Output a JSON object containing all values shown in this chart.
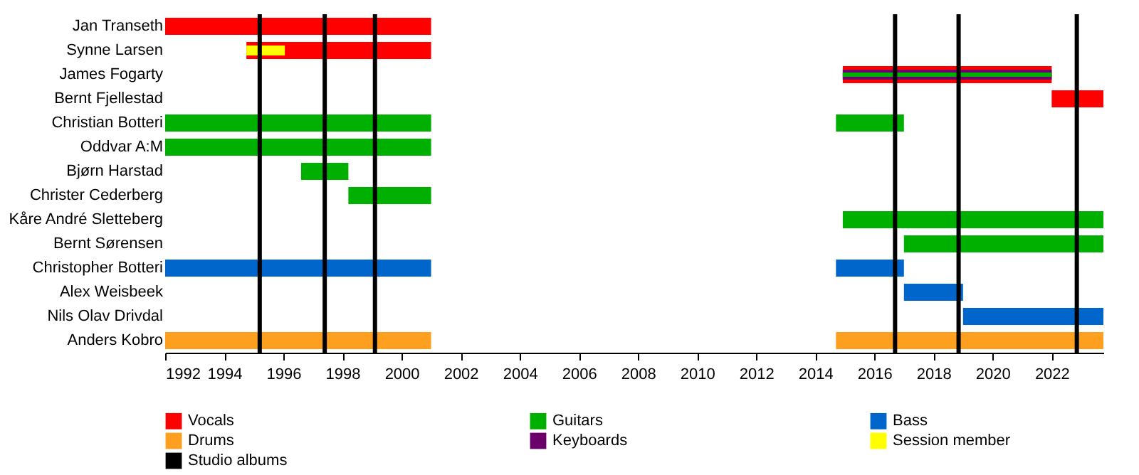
{
  "chart_data": {
    "type": "bar",
    "orientation": "horizontal",
    "legend": "bottom",
    "categories": [
      "Jan Transeth",
      "Synne Larsen",
      "James Fogarty",
      "Bernt Fjellestad",
      "Christian Botteri",
      "Oddvar A:M",
      "Bjørn Harstad",
      "Christer Cederberg",
      "Kåre André Sletteberg",
      "Bernt Sørensen",
      "Christopher Botteri",
      "Alex Weisbeek",
      "Nils Olav Drivdal",
      "Anders Kobro"
    ],
    "series": [
      {
        "name": "Vocals",
        "color": "#ff0000",
        "base": [
          1992,
          1994.75,
          2014.93,
          2022,
          null,
          null,
          null,
          null,
          null,
          null,
          null,
          null,
          null,
          null
        ],
        "values": [
          9,
          6.25,
          7.07,
          1.75,
          null,
          null,
          null,
          null,
          null,
          null,
          null,
          null,
          null,
          null
        ]
      },
      {
        "name": "Guitars",
        "color": "#00b000",
        "base": [
          null,
          null,
          null,
          null,
          1992,
          1992,
          1996.6,
          1998.2,
          2014.93,
          2017,
          null,
          null,
          null,
          null
        ],
        "values": [
          null,
          null,
          null,
          null,
          9,
          9,
          1.6,
          2.8,
          8.82,
          6.75,
          null,
          null,
          null,
          null
        ]
      },
      {
        "name": "Bass",
        "color": "#0066cc",
        "base": [
          null,
          null,
          null,
          null,
          null,
          null,
          null,
          null,
          null,
          null,
          1992,
          2017,
          2019,
          null
        ],
        "values": [
          null,
          null,
          null,
          null,
          null,
          null,
          null,
          null,
          null,
          null,
          9,
          2,
          4.75,
          null
        ]
      },
      {
        "name": "Drums",
        "color": "#ff9f20",
        "base": [
          null,
          null,
          null,
          null,
          null,
          null,
          null,
          null,
          null,
          null,
          null,
          null,
          null,
          1992
        ],
        "values": [
          null,
          null,
          null,
          null,
          null,
          null,
          null,
          null,
          null,
          null,
          null,
          null,
          null,
          9
        ]
      },
      {
        "name": "Keyboards",
        "color": "#6b006b",
        "base": [
          null,
          null,
          2014.93,
          null,
          null,
          null,
          null,
          null,
          null,
          null,
          null,
          null,
          null,
          null
        ],
        "values": [
          null,
          null,
          7.07,
          null,
          null,
          null,
          null,
          null,
          null,
          null,
          null,
          null,
          null,
          null
        ]
      },
      {
        "name": "Session member",
        "color": "#ffff00",
        "base": [
          null,
          1994.75,
          null,
          null,
          null,
          null,
          null,
          null,
          null,
          null,
          null,
          null,
          null,
          null
        ],
        "values": [
          null,
          1.3,
          null,
          null,
          null,
          null,
          null,
          null,
          null,
          null,
          null,
          null,
          null,
          null
        ]
      },
      {
        "color": "#00b000",
        "base": [
          null,
          null,
          2014.93,
          null,
          2014.7,
          null,
          null,
          null,
          null,
          null,
          null,
          null,
          null,
          null
        ],
        "values": [
          null,
          null,
          7.07,
          null,
          2.3,
          null,
          null,
          null,
          null,
          null,
          null,
          null,
          null,
          null
        ]
      },
      {
        "color": "#0066cc",
        "base": [
          null,
          null,
          null,
          null,
          null,
          null,
          null,
          null,
          null,
          null,
          2014.7,
          null,
          null,
          null
        ],
        "values": [
          null,
          null,
          null,
          null,
          null,
          null,
          null,
          null,
          null,
          null,
          2.3,
          null,
          null,
          null
        ]
      },
      {
        "color": "#ff9f20",
        "base": [
          null,
          null,
          null,
          null,
          null,
          null,
          null,
          null,
          null,
          null,
          null,
          null,
          null,
          2014.7
        ],
        "values": [
          null,
          null,
          null,
          null,
          null,
          null,
          null,
          null,
          null,
          null,
          null,
          null,
          null,
          9.05
        ]
      }
    ],
    "xlim": [
      1992,
      2023.75
    ],
    "xticks": [
      1992,
      1994,
      1996,
      1998,
      2000,
      2002,
      2004,
      2006,
      2008,
      2010,
      2012,
      2014,
      2016,
      2018,
      2020,
      2022
    ],
    "ref_lines": [
      {
        "axis": "x",
        "value": 1995.2,
        "color": "#000000",
        "label": "Studio albums"
      },
      {
        "axis": "x",
        "value": 1997.4,
        "color": "#000000"
      },
      {
        "axis": "x",
        "value": 1999.1,
        "color": "#000000"
      },
      {
        "axis": "x",
        "value": 2016.7,
        "color": "#000000"
      },
      {
        "axis": "x",
        "value": 2018.85,
        "color": "#000000"
      },
      {
        "axis": "x",
        "value": 2022.85,
        "color": "#000000"
      }
    ]
  }
}
